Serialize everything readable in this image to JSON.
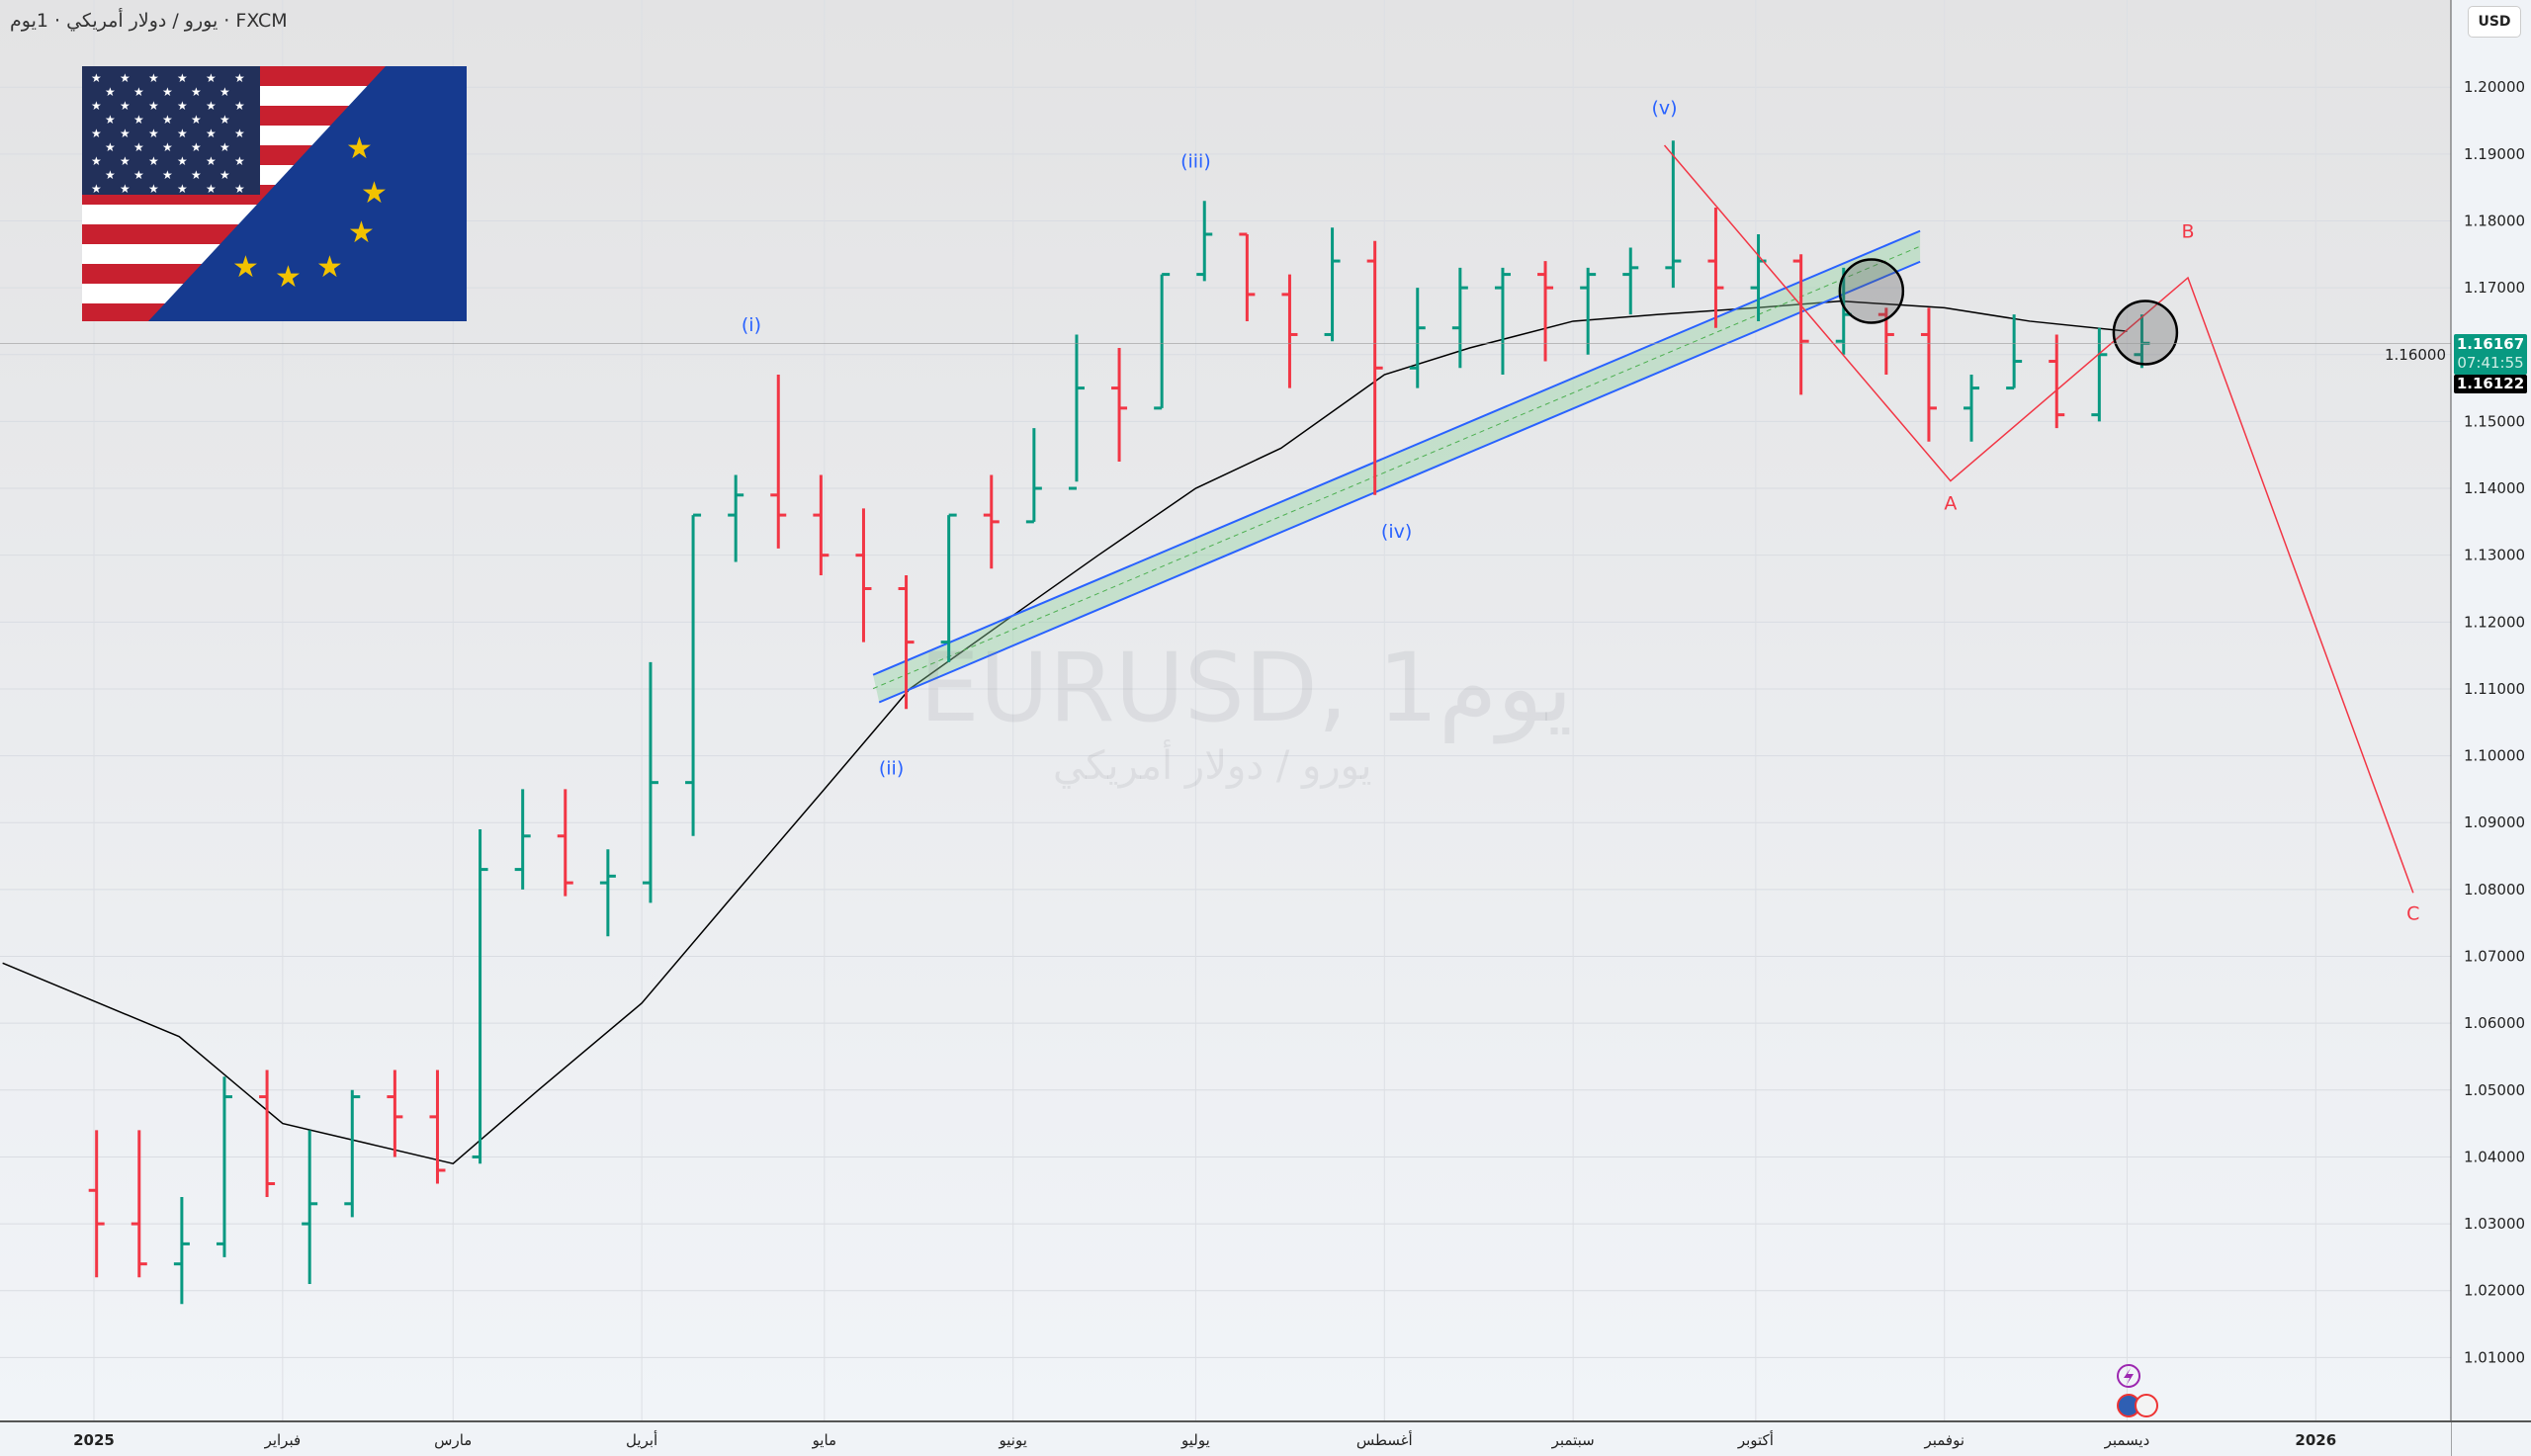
{
  "header": {
    "symbol_title": "يورو / دولار أمريكي · 1يوم · FXCM"
  },
  "currency_button": "USD",
  "watermark": {
    "line1": "EURUSD, 1يوم",
    "line2": "يورو / دولار أمريكي"
  },
  "price_labels": {
    "last_price": "1.16167",
    "countdown": "07:41:55",
    "previous": "1.16122"
  },
  "colors": {
    "up": "#089981",
    "down": "#f23645",
    "channel": "#2962ff",
    "zigzag": "#f23645",
    "wave_labels": "#2962ff",
    "ma": "#000000"
  },
  "chart_data": {
    "type": "ohlc",
    "title": "EURUSD, 1يوم",
    "ylim": [
      1.0,
      1.205
    ],
    "xlim": [
      "2024-12-17",
      "2026-02-10"
    ],
    "grid": true,
    "y_ticks": [
      "1.20000",
      "1.19000",
      "1.18000",
      "1.17000",
      "1.16000",
      "1.15000",
      "1.14000",
      "1.13000",
      "1.12000",
      "1.11000",
      "1.10000",
      "1.09000",
      "1.08000",
      "1.07000",
      "1.06000",
      "1.05000",
      "1.04000",
      "1.03000",
      "1.02000",
      "1.01000"
    ],
    "x_ticks": [
      {
        "date": "2025-01-01",
        "label": "2025"
      },
      {
        "date": "2025-02-01",
        "label": "فبراير"
      },
      {
        "date": "2025-03-01",
        "label": "مارس"
      },
      {
        "date": "2025-04-01",
        "label": "أبريل"
      },
      {
        "date": "2025-05-01",
        "label": "مايو"
      },
      {
        "date": "2025-06-01",
        "label": "يونيو"
      },
      {
        "date": "2025-07-01",
        "label": "يوليو"
      },
      {
        "date": "2025-08-01",
        "label": "أغسطس"
      },
      {
        "date": "2025-09-01",
        "label": "سبتمبر"
      },
      {
        "date": "2025-10-01",
        "label": "أكتوبر"
      },
      {
        "date": "2025-11-01",
        "label": "نوفمبر"
      },
      {
        "date": "2025-12-01",
        "label": "ديسمبر"
      },
      {
        "date": "2026-01-01",
        "label": "2026"
      }
    ],
    "bars": [
      [
        "2024-12-30",
        1.035,
        1.044,
        1.022,
        1.03
      ],
      [
        "2025-01-06",
        1.03,
        1.044,
        1.022,
        1.024
      ],
      [
        "2025-01-13",
        1.024,
        1.034,
        1.018,
        1.027
      ],
      [
        "2025-01-20",
        1.027,
        1.052,
        1.025,
        1.049
      ],
      [
        "2025-01-27",
        1.049,
        1.053,
        1.034,
        1.036
      ],
      [
        "2025-02-03",
        1.03,
        1.044,
        1.021,
        1.033
      ],
      [
        "2025-02-10",
        1.033,
        1.05,
        1.031,
        1.049
      ],
      [
        "2025-02-17",
        1.049,
        1.053,
        1.04,
        1.046
      ],
      [
        "2025-02-24",
        1.046,
        1.053,
        1.036,
        1.038
      ],
      [
        "2025-03-03",
        1.04,
        1.089,
        1.039,
        1.083
      ],
      [
        "2025-03-10",
        1.083,
        1.095,
        1.08,
        1.088
      ],
      [
        "2025-03-17",
        1.088,
        1.095,
        1.079,
        1.081
      ],
      [
        "2025-03-24",
        1.081,
        1.086,
        1.073,
        1.082
      ],
      [
        "2025-03-31",
        1.081,
        1.114,
        1.078,
        1.096
      ],
      [
        "2025-04-07",
        1.096,
        1.136,
        1.088,
        1.136
      ],
      [
        "2025-04-14",
        1.136,
        1.142,
        1.129,
        1.139
      ],
      [
        "2025-04-21",
        1.139,
        1.157,
        1.131,
        1.136
      ],
      [
        "2025-04-28",
        1.136,
        1.142,
        1.127,
        1.13
      ],
      [
        "2025-05-05",
        1.13,
        1.137,
        1.117,
        1.125
      ],
      [
        "2025-05-12",
        1.125,
        1.127,
        1.107,
        1.117
      ],
      [
        "2025-05-19",
        1.117,
        1.136,
        1.114,
        1.136
      ],
      [
        "2025-05-26",
        1.136,
        1.142,
        1.128,
        1.135
      ],
      [
        "2025-06-02",
        1.135,
        1.149,
        1.135,
        1.14
      ],
      [
        "2025-06-09",
        1.14,
        1.163,
        1.141,
        1.155
      ],
      [
        "2025-06-16",
        1.155,
        1.161,
        1.144,
        1.152
      ],
      [
        "2025-06-23",
        1.152,
        1.172,
        1.152,
        1.172
      ],
      [
        "2025-06-30",
        1.172,
        1.183,
        1.171,
        1.178
      ],
      [
        "2025-07-07",
        1.178,
        1.178,
        1.165,
        1.169
      ],
      [
        "2025-07-14",
        1.169,
        1.172,
        1.155,
        1.163
      ],
      [
        "2025-07-21",
        1.163,
        1.179,
        1.162,
        1.174
      ],
      [
        "2025-07-28",
        1.174,
        1.177,
        1.139,
        1.158
      ],
      [
        "2025-08-04",
        1.158,
        1.17,
        1.155,
        1.164
      ],
      [
        "2025-08-11",
        1.164,
        1.173,
        1.158,
        1.17
      ],
      [
        "2025-08-18",
        1.17,
        1.173,
        1.157,
        1.172
      ],
      [
        "2025-08-25",
        1.172,
        1.174,
        1.159,
        1.17
      ],
      [
        "2025-09-01",
        1.17,
        1.173,
        1.16,
        1.172
      ],
      [
        "2025-09-08",
        1.172,
        1.176,
        1.166,
        1.173
      ],
      [
        "2025-09-15",
        1.173,
        1.192,
        1.17,
        1.174
      ],
      [
        "2025-09-22",
        1.174,
        1.182,
        1.164,
        1.17
      ],
      [
        "2025-09-29",
        1.17,
        1.178,
        1.165,
        1.174
      ],
      [
        "2025-10-06",
        1.174,
        1.175,
        1.154,
        1.162
      ],
      [
        "2025-10-13",
        1.162,
        1.173,
        1.16,
        1.166
      ],
      [
        "2025-10-20",
        1.166,
        1.167,
        1.157,
        1.163
      ],
      [
        "2025-10-27",
        1.163,
        1.167,
        1.147,
        1.152
      ],
      [
        "2025-11-03",
        1.152,
        1.157,
        1.147,
        1.155
      ],
      [
        "2025-11-10",
        1.155,
        1.166,
        1.155,
        1.159
      ],
      [
        "2025-11-17",
        1.159,
        1.163,
        1.149,
        1.151
      ],
      [
        "2025-11-24",
        1.151,
        1.164,
        1.15,
        1.16
      ],
      [
        "2025-12-01",
        1.16,
        1.166,
        1.158,
        1.1617
      ]
    ],
    "moving_average": [
      [
        "2024-12-17",
        1.069
      ],
      [
        "2025-01-15",
        1.058
      ],
      [
        "2025-02-01",
        1.045
      ],
      [
        "2025-02-15",
        1.042
      ],
      [
        "2025-03-01",
        1.039
      ],
      [
        "2025-03-15",
        1.05
      ],
      [
        "2025-04-01",
        1.063
      ],
      [
        "2025-04-15",
        1.078
      ],
      [
        "2025-05-01",
        1.095
      ],
      [
        "2025-05-15",
        1.11
      ],
      [
        "2025-06-01",
        1.121
      ],
      [
        "2025-06-15",
        1.13
      ],
      [
        "2025-07-01",
        1.14
      ],
      [
        "2025-07-15",
        1.146
      ],
      [
        "2025-08-01",
        1.157
      ],
      [
        "2025-08-15",
        1.161
      ],
      [
        "2025-09-01",
        1.165
      ],
      [
        "2025-09-15",
        1.166
      ],
      [
        "2025-10-01",
        1.167
      ],
      [
        "2025-10-15",
        1.168
      ],
      [
        "2025-11-01",
        1.167
      ],
      [
        "2025-11-15",
        1.165
      ],
      [
        "2025-12-01",
        1.1635
      ]
    ],
    "channel": {
      "upper": [
        [
          "2025-05-09",
          1.1121
        ],
        [
          "2025-10-28",
          1.1785
        ]
      ],
      "lower": [
        [
          "2025-05-10",
          1.108
        ],
        [
          "2025-10-28",
          1.1739
        ]
      ]
    },
    "wave_labels": [
      {
        "text": "(i)",
        "date": "2025-04-19",
        "price": 1.1635
      },
      {
        "text": "(ii)",
        "date": "2025-05-12",
        "price": 1.0972
      },
      {
        "text": "(iii)",
        "date": "2025-07-01",
        "price": 1.188
      },
      {
        "text": "(iv)",
        "date": "2025-08-03",
        "price": 1.1326
      },
      {
        "text": "(v)",
        "date": "2025-09-16",
        "price": 1.196
      }
    ],
    "zigzag": [
      [
        "2025-09-16",
        1.1913
      ],
      [
        "2025-11-02",
        1.1411
      ],
      [
        "2025-12-11",
        1.1715
      ],
      [
        "2026-01-17",
        1.0795
      ]
    ],
    "zigzag_labels": [
      {
        "text": "A",
        "date": "2025-11-02",
        "price": 1.1368
      },
      {
        "text": "B",
        "date": "2025-12-11",
        "price": 1.1775
      },
      {
        "text": "C",
        "date": "2026-01-17",
        "price": 1.0755
      }
    ],
    "circles": [
      [
        "2025-10-20",
        1.1695
      ],
      [
        "2025-12-04",
        1.1633
      ]
    ],
    "last_price": 1.16167
  }
}
